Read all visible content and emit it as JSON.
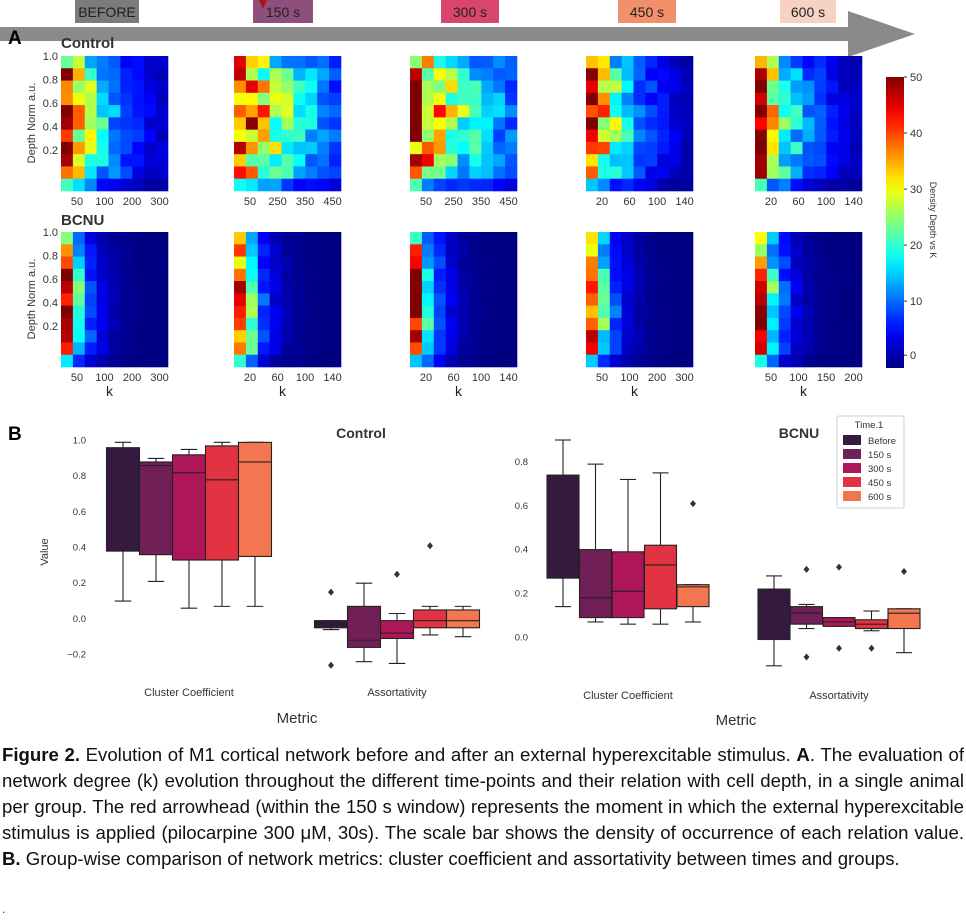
{
  "panel_a_label": "A",
  "panel_b_label": "B",
  "timeline": {
    "labels": [
      "BEFORE",
      "150 s",
      "300 s",
      "450 s",
      "600 s"
    ],
    "colors": [
      "#7b7b7b",
      "#8e4f7a",
      "#d9456b",
      "#f2906c",
      "#f7d2c3"
    ]
  },
  "heatmaps": {
    "group_labels": [
      "Control",
      "BCNU"
    ],
    "y_axis_label": "Depth Norm a.u.",
    "y_ticks": [
      "1.0",
      "0.8",
      "0.6",
      "0.4",
      "0.2"
    ],
    "x_axis_label": "k",
    "x_ticks": [
      [
        [
          "50",
          "100",
          "200",
          "300"
        ],
        [
          "50",
          "250",
          "350",
          "450"
        ],
        [
          "50",
          "250",
          "350",
          "450"
        ],
        [
          "20",
          "60",
          "100",
          "140"
        ],
        [
          "20",
          "60",
          "100",
          "140"
        ]
      ],
      [
        [
          "50",
          "100",
          "200",
          "300"
        ],
        [
          "20",
          "60",
          "100",
          "140"
        ],
        [
          "20",
          "60",
          "100",
          "140"
        ],
        [
          "50",
          "100",
          "200",
          "300"
        ],
        [
          "50",
          "100",
          "150",
          "200"
        ]
      ]
    ],
    "colorbar_label": "Density Depth vs K",
    "colorbar_ticks": [
      "50",
      "40",
      "30",
      "20",
      "10",
      "0"
    ]
  },
  "chart_data": [
    {
      "type": "box",
      "title": "Control",
      "xlabel": "Metric",
      "ylabel": "Value",
      "categories": [
        "Cluster Coefficient",
        "Assortativity"
      ],
      "yticks": [
        "1.0",
        "0.8",
        "0.6",
        "0.4",
        "0.2",
        "0.0",
        "−0.2"
      ],
      "ylim": [
        -0.27,
        1.02
      ],
      "series": [
        {
          "name": "Before",
          "color": "#35193e",
          "boxes": [
            {
              "whislo": 0.1,
              "q1": 0.38,
              "med": 0.72,
              "q3": 0.96,
              "whishi": 0.99,
              "fliers": []
            },
            {
              "whislo": -0.06,
              "q1": -0.05,
              "med": -0.03,
              "q3": -0.01,
              "whishi": -0.01,
              "fliers": [
                0.15,
                -0.26
              ]
            }
          ]
        },
        {
          "name": "150 s",
          "color": "#701f57",
          "boxes": [
            {
              "whislo": 0.21,
              "q1": 0.36,
              "med": 0.86,
              "q3": 0.88,
              "whishi": 0.9,
              "fliers": []
            },
            {
              "whislo": -0.24,
              "q1": -0.16,
              "med": -0.12,
              "q3": 0.07,
              "whishi": 0.2,
              "fliers": []
            }
          ]
        },
        {
          "name": "300 s",
          "color": "#ad1759",
          "boxes": [
            {
              "whislo": 0.06,
              "q1": 0.33,
              "med": 0.82,
              "q3": 0.92,
              "whishi": 0.95,
              "fliers": []
            },
            {
              "whislo": -0.25,
              "q1": -0.11,
              "med": -0.08,
              "q3": -0.01,
              "whishi": 0.03,
              "fliers": [
                0.25
              ]
            }
          ]
        },
        {
          "name": "450 s",
          "color": "#e13342",
          "boxes": [
            {
              "whislo": 0.07,
              "q1": 0.33,
              "med": 0.78,
              "q3": 0.97,
              "whishi": 0.99,
              "fliers": []
            },
            {
              "whislo": -0.09,
              "q1": -0.05,
              "med": -0.01,
              "q3": 0.05,
              "whishi": 0.07,
              "fliers": [
                0.41
              ]
            }
          ]
        },
        {
          "name": "600 s",
          "color": "#f37651",
          "boxes": [
            {
              "whislo": 0.07,
              "q1": 0.35,
              "med": 0.88,
              "q3": 0.99,
              "whishi": 0.99,
              "fliers": []
            },
            {
              "whislo": -0.1,
              "q1": -0.05,
              "med": -0.01,
              "q3": 0.05,
              "whishi": 0.07,
              "fliers": []
            }
          ]
        }
      ]
    },
    {
      "type": "box",
      "title": "BCNU",
      "xlabel": "Metric",
      "ylabel": "",
      "categories": [
        "Cluster Coefficient",
        "Assortativity"
      ],
      "yticks": [
        "0.8",
        "0.6",
        "0.4",
        "0.2",
        "0.0"
      ],
      "ylim": [
        -0.14,
        0.9
      ],
      "legend_title": "Time.1",
      "legend_position": "top-right",
      "series": [
        {
          "name": "Before",
          "color": "#35193e",
          "boxes": [
            {
              "whislo": 0.14,
              "q1": 0.27,
              "med": 0.34,
              "q3": 0.74,
              "whishi": 0.9,
              "fliers": []
            },
            {
              "whislo": -0.13,
              "q1": -0.01,
              "med": 0.16,
              "q3": 0.22,
              "whishi": 0.28,
              "fliers": []
            }
          ]
        },
        {
          "name": "150 s",
          "color": "#701f57",
          "boxes": [
            {
              "whislo": 0.07,
              "q1": 0.09,
              "med": 0.18,
              "q3": 0.4,
              "whishi": 0.79,
              "fliers": []
            },
            {
              "whislo": 0.04,
              "q1": 0.06,
              "med": 0.11,
              "q3": 0.14,
              "whishi": 0.15,
              "fliers": [
                0.31,
                -0.09
              ]
            }
          ]
        },
        {
          "name": "300 s",
          "color": "#ad1759",
          "boxes": [
            {
              "whislo": 0.06,
              "q1": 0.09,
              "med": 0.21,
              "q3": 0.39,
              "whishi": 0.72,
              "fliers": []
            },
            {
              "whislo": 0.05,
              "q1": 0.05,
              "med": 0.07,
              "q3": 0.09,
              "whishi": 0.09,
              "fliers": [
                0.32,
                -0.05
              ]
            }
          ]
        },
        {
          "name": "450 s",
          "color": "#e13342",
          "boxes": [
            {
              "whislo": 0.06,
              "q1": 0.13,
              "med": 0.33,
              "q3": 0.42,
              "whishi": 0.75,
              "fliers": []
            },
            {
              "whislo": 0.03,
              "q1": 0.04,
              "med": 0.06,
              "q3": 0.08,
              "whishi": 0.12,
              "fliers": [
                -0.05
              ]
            }
          ]
        },
        {
          "name": "600 s",
          "color": "#f37651",
          "boxes": [
            {
              "whislo": 0.07,
              "q1": 0.14,
              "med": 0.23,
              "q3": 0.24,
              "whishi": 0.24,
              "fliers": [
                0.61
              ]
            },
            {
              "whislo": -0.07,
              "q1": 0.04,
              "med": 0.11,
              "q3": 0.13,
              "whishi": 0.13,
              "fliers": [
                0.3
              ]
            }
          ]
        }
      ]
    }
  ],
  "caption": {
    "fig_label": "Figure 2.",
    "part1": " Evolution of M1 cortical network before and after an external hyperexcitable stimulus. ",
    "label_a": "A",
    "part2": ". The evaluation of network degree (k) evolution throughout the different time-points and their relation with cell depth, in a single animal per group. The red arrowhead (within the 150 s window) represents the moment in which the external hyperexcitable stimulus is applied (pilocarpine 300 μM, 30s). The scale bar shows the density of occurrence of each relation value. ",
    "label_b": "B.",
    "part3": " Group-wise comparison of network metrics: cluster coefficient and assortativity between times and groups.",
    "trailing": "."
  }
}
